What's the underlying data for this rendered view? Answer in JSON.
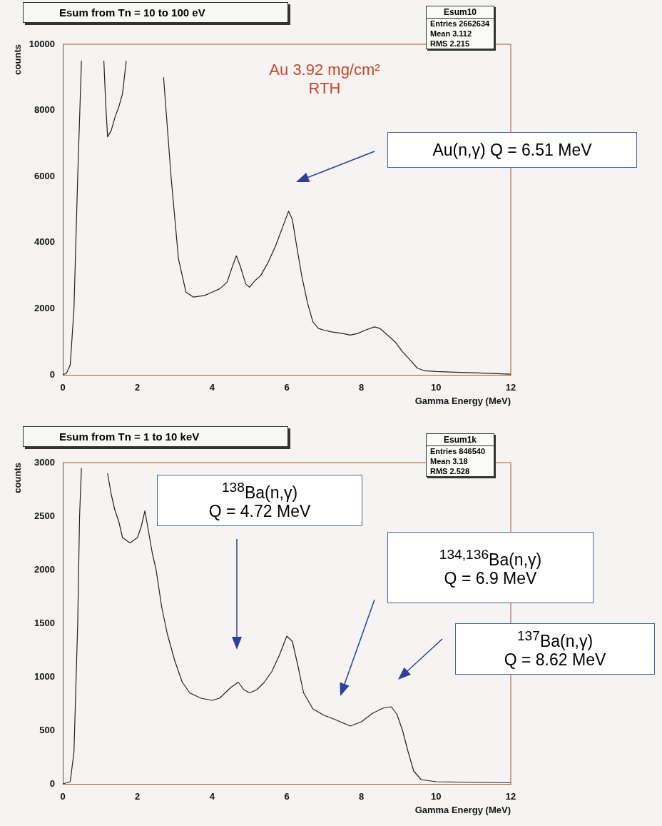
{
  "chart_data": [
    {
      "type": "line",
      "title": "Esum from Tn = 10 to 100 eV",
      "xlabel": "Gamma Energy (MeV)",
      "ylabel": "counts",
      "xlim": [
        0,
        12
      ],
      "ylim": [
        0,
        10000
      ],
      "xticks": [
        0,
        2,
        4,
        6,
        8,
        10,
        12
      ],
      "yticks": [
        0,
        2000,
        4000,
        6000,
        8000,
        10000
      ],
      "grid": false,
      "legend": false,
      "marker": "none",
      "series": [
        {
          "color": "#222222",
          "x": [
            0,
            0.1,
            0.2,
            0.3,
            0.4,
            0.5,
            1.07,
            1.1,
            1.15,
            1.2,
            1.3,
            1.4,
            1.5,
            1.6,
            1.7,
            2.55,
            2.7,
            2.9,
            3.1,
            3.3,
            3.5,
            3.8,
            4.0,
            4.2,
            4.4,
            4.55,
            4.65,
            4.75,
            4.9,
            5.0,
            5.15,
            5.3,
            5.5,
            5.7,
            5.9,
            6.05,
            6.15,
            6.25,
            6.4,
            6.55,
            6.7,
            6.85,
            7.0,
            7.2,
            7.5,
            7.7,
            7.9,
            8.1,
            8.35,
            8.5,
            8.7,
            8.9,
            9.1,
            9.3,
            9.5,
            9.7,
            10,
            10.5,
            11,
            11.5,
            12
          ],
          "values": [
            0,
            50,
            300,
            2000,
            6000,
            9500,
            null,
            9500,
            8200,
            7200,
            7400,
            7800,
            8100,
            8500,
            9500,
            null,
            9000,
            6000,
            3500,
            2500,
            2350,
            2400,
            2500,
            2600,
            2800,
            3300,
            3600,
            3300,
            2750,
            2650,
            2850,
            3000,
            3400,
            3900,
            4500,
            4950,
            4700,
            4000,
            3000,
            2200,
            1600,
            1400,
            1350,
            1300,
            1250,
            1200,
            1250,
            1350,
            1450,
            1400,
            1200,
            1000,
            700,
            450,
            200,
            120,
            100,
            80,
            60,
            40,
            20
          ]
        }
      ],
      "annotations": [
        "Esum10",
        "Entries 2662634",
        "Mean 3.112",
        "RMS 2.215",
        "Au 3.92 mg/cm²\nRTH",
        "Au(n,γ) Q = 6.51 MeV"
      ]
    },
    {
      "type": "line",
      "title": "Esum from Tn = 1 to 10 keV",
      "xlabel": "Gamma Energy (MeV)",
      "ylabel": "counts",
      "xlim": [
        0,
        12
      ],
      "ylim": [
        0,
        3000
      ],
      "xticks": [
        0,
        2,
        4,
        6,
        8,
        10,
        12
      ],
      "yticks": [
        0,
        500,
        1000,
        1500,
        2000,
        2500,
        3000
      ],
      "grid": false,
      "legend": false,
      "marker": "none",
      "series": [
        {
          "color": "#222222",
          "x": [
            0,
            0.2,
            0.3,
            0.4,
            0.45,
            0.5,
            1.13,
            1.2,
            1.3,
            1.4,
            1.5,
            1.6,
            1.8,
            2.0,
            2.1,
            2.2,
            2.3,
            2.4,
            2.5,
            2.65,
            2.8,
            3.0,
            3.2,
            3.4,
            3.7,
            4.0,
            4.2,
            4.5,
            4.7,
            4.85,
            5.0,
            5.2,
            5.4,
            5.6,
            5.8,
            6.0,
            6.15,
            6.3,
            6.45,
            6.7,
            7.0,
            7.3,
            7.7,
            8.0,
            8.3,
            8.6,
            8.8,
            8.95,
            9.1,
            9.25,
            9.4,
            9.6,
            10,
            11,
            12
          ],
          "values": [
            0,
            20,
            300,
            1500,
            2500,
            2950,
            null,
            2900,
            2700,
            2550,
            2450,
            2300,
            2250,
            2300,
            2400,
            2550,
            2350,
            2150,
            2000,
            1650,
            1400,
            1150,
            950,
            850,
            800,
            780,
            800,
            900,
            950,
            880,
            850,
            880,
            950,
            1050,
            1200,
            1380,
            1330,
            1100,
            850,
            700,
            640,
            600,
            540,
            580,
            660,
            710,
            720,
            650,
            500,
            300,
            120,
            40,
            20,
            15,
            10
          ]
        }
      ],
      "annotations": [
        "Esum1k",
        "Entries 846540",
        "Mean 3.18",
        "RMS 2.528",
        "$^{138}$Ba(n,γ)\nQ = 4.72 MeV",
        "$^{134,136}$Ba(n,γ)\nQ = 6.9 MeV",
        "$^{137}$Ba(n,γ)\nQ = 8.62 MeV"
      ]
    }
  ]
}
